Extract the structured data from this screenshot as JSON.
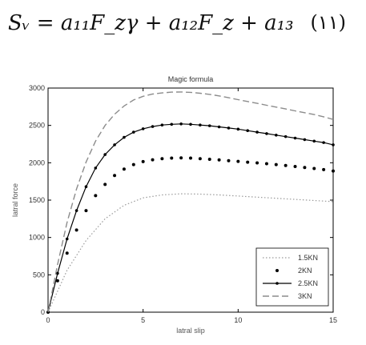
{
  "equation": {
    "text": "Sᵥ = a₁₁F_zγ + a₁₂F_z + a₁₃",
    "number": "(١١)"
  },
  "chart_data": {
    "type": "line",
    "title": "Magic formula",
    "xlabel": "latral slip",
    "ylabel": "latral force",
    "xlim": [
      0,
      15
    ],
    "ylim": [
      0,
      3000
    ],
    "xticks": [
      "0",
      "5",
      "10",
      "15"
    ],
    "yticks": [
      "0",
      "500",
      "1000",
      "1500",
      "2000",
      "2500",
      "3000"
    ],
    "grid": false,
    "legend_position": "bottom-right",
    "series": [
      {
        "name": "1.5KN",
        "style": "dotted",
        "color": "#9a9a9a",
        "x": [
          0,
          1,
          2,
          3,
          4,
          5,
          6,
          7,
          8,
          9,
          10,
          11,
          12,
          13,
          14,
          15
        ],
        "y": [
          0,
          560,
          960,
          1250,
          1430,
          1530,
          1570,
          1585,
          1580,
          1570,
          1555,
          1540,
          1525,
          1510,
          1495,
          1480
        ]
      },
      {
        "name": "2KN",
        "style": "dots",
        "color": "#000000",
        "x": [
          0,
          0.5,
          1,
          1.5,
          2,
          2.5,
          3,
          3.5,
          4,
          4.5,
          5,
          5.5,
          6,
          6.5,
          7,
          7.5,
          8,
          8.5,
          9,
          9.5,
          10,
          10.5,
          11,
          11.5,
          12,
          12.5,
          13,
          13.5,
          14,
          14.5,
          15
        ],
        "y": [
          0,
          420,
          790,
          1100,
          1360,
          1560,
          1710,
          1830,
          1915,
          1975,
          2015,
          2040,
          2055,
          2062,
          2065,
          2062,
          2055,
          2047,
          2038,
          2028,
          2018,
          2008,
          1998,
          1988,
          1975,
          1963,
          1950,
          1937,
          1923,
          1908,
          1890
        ]
      },
      {
        "name": "2.5KN",
        "style": "solid-dots",
        "color": "#000000",
        "x": [
          0,
          0.5,
          1,
          1.5,
          2,
          2.5,
          3,
          3.5,
          4,
          4.5,
          5,
          5.5,
          6,
          6.5,
          7,
          7.5,
          8,
          8.5,
          9,
          9.5,
          10,
          10.5,
          11,
          11.5,
          12,
          12.5,
          13,
          13.5,
          14,
          14.5,
          15
        ],
        "y": [
          0,
          520,
          980,
          1360,
          1680,
          1930,
          2110,
          2240,
          2340,
          2410,
          2455,
          2485,
          2505,
          2515,
          2520,
          2515,
          2505,
          2495,
          2480,
          2465,
          2450,
          2430,
          2410,
          2390,
          2370,
          2350,
          2330,
          2310,
          2290,
          2270,
          2240
        ]
      },
      {
        "name": "3KN",
        "style": "dashed",
        "color": "#8c8c8c",
        "x": [
          0,
          0.5,
          1,
          1.5,
          2,
          2.5,
          3,
          3.5,
          4,
          4.5,
          5,
          5.5,
          6,
          6.5,
          7,
          7.5,
          8,
          8.5,
          9,
          9.5,
          10,
          10.5,
          11,
          11.5,
          12,
          12.5,
          13,
          13.5,
          14,
          14.5,
          15
        ],
        "y": [
          0,
          640,
          1200,
          1650,
          2010,
          2290,
          2500,
          2650,
          2760,
          2840,
          2890,
          2920,
          2935,
          2945,
          2948,
          2942,
          2930,
          2915,
          2895,
          2870,
          2845,
          2820,
          2795,
          2770,
          2745,
          2720,
          2695,
          2670,
          2645,
          2615,
          2580
        ]
      }
    ]
  }
}
